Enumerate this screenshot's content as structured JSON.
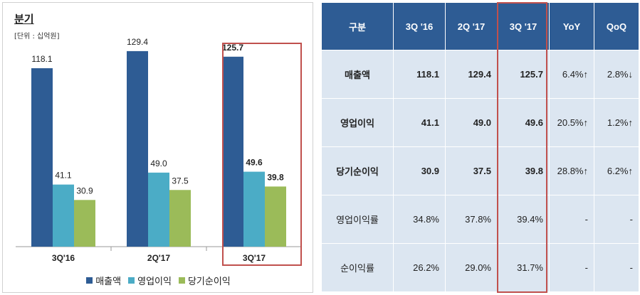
{
  "title": "분기",
  "unit": "[단위 : 십억원]",
  "colors": {
    "sales": "#2e5c94",
    "operating": "#4bacc6",
    "net": "#9bbb59",
    "header": "#2e5c94",
    "cell": "#dce6f1",
    "highlight": "#c0504d"
  },
  "chart_data": {
    "type": "bar",
    "categories": [
      "3Q'16",
      "2Q'17",
      "3Q'17"
    ],
    "series": [
      {
        "name": "매출액",
        "values": [
          118.1,
          129.4,
          125.7
        ],
        "labels": [
          "118.1",
          "129.4",
          "125.7"
        ]
      },
      {
        "name": "영업이익",
        "values": [
          41.1,
          49.0,
          49.6
        ],
        "labels": [
          "41.1",
          "49.0",
          "49.6"
        ]
      },
      {
        "name": "당기순이익",
        "values": [
          30.9,
          37.5,
          39.8
        ],
        "labels": [
          "30.9",
          "37.5",
          "39.8"
        ]
      }
    ],
    "ylim": [
      0,
      135
    ],
    "grid": false,
    "legend": "bottom",
    "highlight_category": "3Q'17"
  },
  "table": {
    "headers": [
      "구분",
      "3Q '16",
      "2Q '17",
      "3Q '17",
      "YoY",
      "QoQ"
    ],
    "rows": [
      {
        "label": "매출액",
        "cells": [
          "118.1",
          "129.4",
          "125.7"
        ],
        "yoy": "6.4%↑",
        "qoq": "2.8%↓"
      },
      {
        "label": "영업이익",
        "cells": [
          "41.1",
          "49.0",
          "49.6"
        ],
        "yoy": "20.5%↑",
        "qoq": "1.2%↑"
      },
      {
        "label": "당기순이익",
        "cells": [
          "30.9",
          "37.5",
          "39.8"
        ],
        "yoy": "28.8%↑",
        "qoq": "6.2%↑"
      },
      {
        "label": "영업이익률",
        "cells": [
          "34.8%",
          "37.8%",
          "39.4%"
        ],
        "yoy": "-",
        "qoq": "-"
      },
      {
        "label": "순이익률",
        "cells": [
          "26.2%",
          "29.0%",
          "31.7%"
        ],
        "yoy": "-",
        "qoq": "-"
      }
    ]
  }
}
